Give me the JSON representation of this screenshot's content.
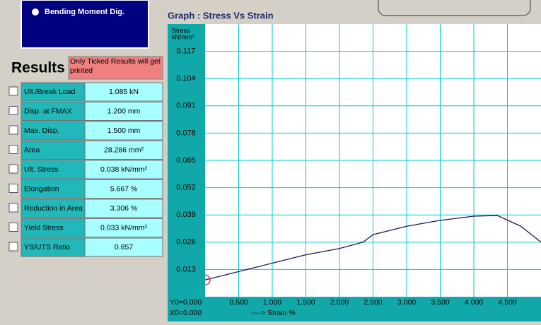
{
  "panel": {
    "button": "Bending Moment Dig.",
    "results_label": "Results :",
    "note": "Only Ticked Results will get printed",
    "rows": [
      [
        "Ult./Break Load",
        "1.085  kN"
      ],
      [
        "Disp. at FMAX",
        "1.200  mm"
      ],
      [
        "Max. Disp.",
        "1.500  mm"
      ],
      [
        "Area",
        "28.286  mm²"
      ],
      [
        "Ult. Stress",
        "0.038  kN/mm²"
      ],
      [
        "Elongation",
        "5.667  %"
      ],
      [
        "Reduction in Area",
        "3.306  %"
      ],
      [
        "Yield Stress",
        "0.033  kN/mm²"
      ],
      [
        "YS/UTS Ratio",
        "0.857"
      ]
    ]
  },
  "chart_data": {
    "type": "line",
    "title": "Graph :  Stress Vs Strain",
    "y_label": [
      "Stress",
      "kN/mm²"
    ],
    "x_label": "----> Strain  %",
    "origin_labels": [
      "Y0=0.000",
      "X0=0.000"
    ],
    "x": [
      0,
      0.5,
      1.0,
      1.5,
      2.0,
      2.35,
      2.5,
      3.0,
      3.5,
      4.0,
      4.35,
      4.7,
      5.0
    ],
    "series": [
      {
        "name": "Stress",
        "color": "#1a1a5a",
        "values": [
          0.008,
          0.012,
          0.016,
          0.02,
          0.023,
          0.026,
          0.0296,
          0.0336,
          0.0364,
          0.0384,
          0.0387,
          0.0336,
          0.026
        ]
      }
    ],
    "xlim": [
      0,
      5.0
    ],
    "ylim": [
      0,
      0.13
    ],
    "xticks": [
      {
        "value": 0.5,
        "label": "0.500"
      },
      {
        "value": 1.0,
        "label": "1.000"
      },
      {
        "value": 1.5,
        "label": "1.500"
      },
      {
        "value": 2.0,
        "label": "2.000"
      },
      {
        "value": 2.5,
        "label": "2.500"
      },
      {
        "value": 3.0,
        "label": "3.000"
      },
      {
        "value": 3.5,
        "label": "3.500"
      },
      {
        "value": 4.0,
        "label": "4.000"
      },
      {
        "value": 4.5,
        "label": "4.500"
      }
    ],
    "yticks": [
      0.013,
      0.026,
      0.039,
      0.052,
      0.065,
      0.078,
      0.091,
      0.104,
      0.117
    ],
    "grid": true,
    "grid_color": "#00c8d8"
  }
}
